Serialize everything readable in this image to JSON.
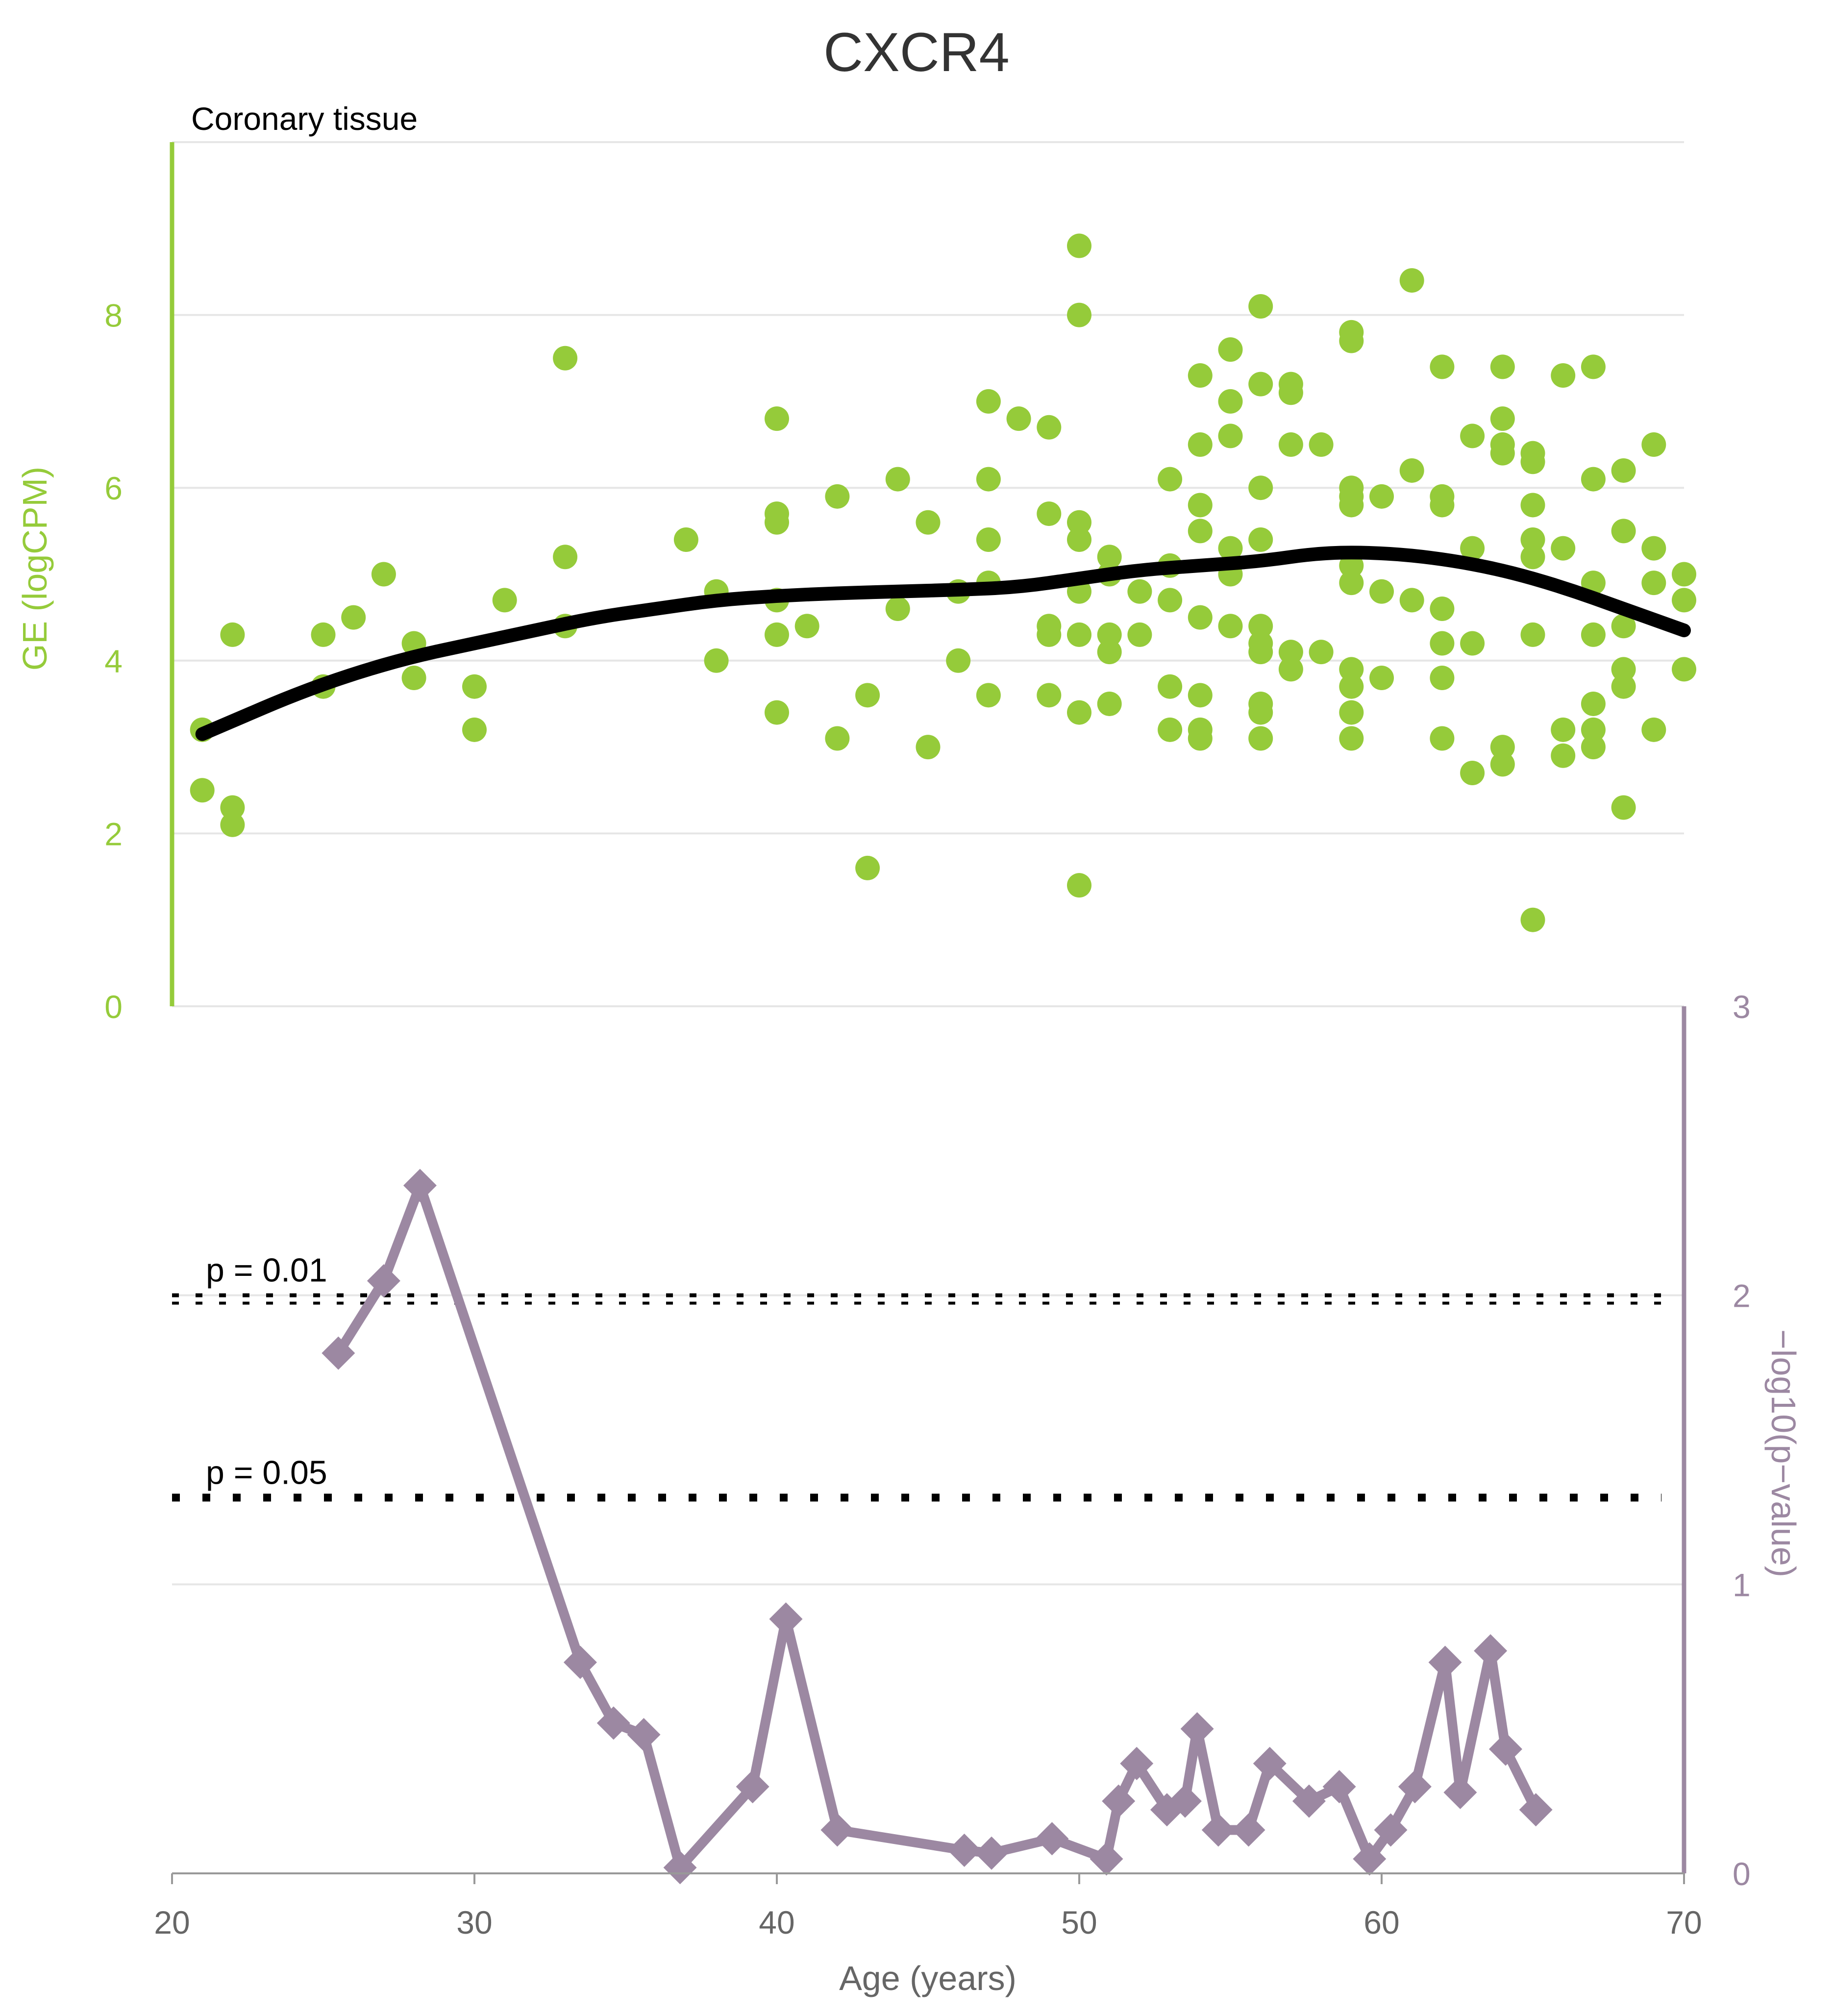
{
  "title": "CXCR4",
  "colors": {
    "scatter": "#95CB3A",
    "pvalue": "#9C88A2",
    "trend": "#000000",
    "grid": "#E6E6E6",
    "title": "#333333",
    "axis_text": "#666666"
  },
  "chart_data": [
    {
      "type": "scatter",
      "subtitle": "Coronary tissue",
      "ylabel": "GE (logCPM)",
      "xlim": [
        20,
        70
      ],
      "ylim": [
        0,
        10
      ],
      "yticks": [
        "0",
        "2",
        "4",
        "6",
        "8"
      ],
      "grid": true,
      "points": [
        [
          21,
          3.2
        ],
        [
          21,
          2.5
        ],
        [
          22,
          4.3
        ],
        [
          22,
          2.3
        ],
        [
          22,
          2.1
        ],
        [
          25,
          4.3
        ],
        [
          25,
          3.7
        ],
        [
          26,
          4.5
        ],
        [
          27,
          5.0
        ],
        [
          28,
          4.2
        ],
        [
          28,
          3.8
        ],
        [
          30,
          3.7
        ],
        [
          30,
          3.2
        ],
        [
          31,
          4.7
        ],
        [
          33,
          7.5
        ],
        [
          33,
          5.2
        ],
        [
          33,
          4.4
        ],
        [
          37,
          5.4
        ],
        [
          38,
          4.8
        ],
        [
          38,
          4.0
        ],
        [
          40,
          6.8
        ],
        [
          40,
          5.7
        ],
        [
          40,
          5.6
        ],
        [
          40,
          4.7
        ],
        [
          40,
          4.3
        ],
        [
          40,
          3.4
        ],
        [
          41,
          4.4
        ],
        [
          42,
          5.9
        ],
        [
          42,
          3.1
        ],
        [
          43,
          3.6
        ],
        [
          43,
          1.6
        ],
        [
          44,
          6.1
        ],
        [
          44,
          4.6
        ],
        [
          45,
          5.6
        ],
        [
          45,
          3.0
        ],
        [
          46,
          4.8
        ],
        [
          46,
          4.0
        ],
        [
          47,
          7.0
        ],
        [
          47,
          6.1
        ],
        [
          47,
          5.4
        ],
        [
          47,
          4.9
        ],
        [
          47,
          3.6
        ],
        [
          48,
          6.8
        ],
        [
          49,
          6.7
        ],
        [
          49,
          5.7
        ],
        [
          49,
          4.4
        ],
        [
          49,
          4.3
        ],
        [
          49,
          3.6
        ],
        [
          50,
          8.8
        ],
        [
          50,
          8.0
        ],
        [
          50,
          5.6
        ],
        [
          50,
          5.4
        ],
        [
          50,
          4.8
        ],
        [
          50,
          4.3
        ],
        [
          50,
          3.4
        ],
        [
          50,
          1.4
        ],
        [
          51,
          5.2
        ],
        [
          51,
          5.0
        ],
        [
          51,
          4.3
        ],
        [
          51,
          4.1
        ],
        [
          51,
          3.5
        ],
        [
          52,
          4.8
        ],
        [
          52,
          4.3
        ],
        [
          53,
          6.1
        ],
        [
          53,
          5.1
        ],
        [
          53,
          4.7
        ],
        [
          53,
          3.7
        ],
        [
          53,
          3.2
        ],
        [
          54,
          7.3
        ],
        [
          54,
          6.5
        ],
        [
          54,
          5.8
        ],
        [
          54,
          5.5
        ],
        [
          54,
          4.5
        ],
        [
          54,
          3.6
        ],
        [
          54,
          3.2
        ],
        [
          54,
          3.1
        ],
        [
          55,
          7.6
        ],
        [
          55,
          7.0
        ],
        [
          55,
          6.6
        ],
        [
          55,
          5.3
        ],
        [
          55,
          5.0
        ],
        [
          55,
          4.4
        ],
        [
          56,
          8.1
        ],
        [
          56,
          7.2
        ],
        [
          56,
          6.0
        ],
        [
          56,
          5.4
        ],
        [
          56,
          4.4
        ],
        [
          56,
          4.2
        ],
        [
          56,
          4.1
        ],
        [
          56,
          3.5
        ],
        [
          56,
          3.4
        ],
        [
          56,
          3.1
        ],
        [
          57,
          7.2
        ],
        [
          57,
          7.1
        ],
        [
          57,
          6.5
        ],
        [
          57,
          4.1
        ],
        [
          57,
          3.9
        ],
        [
          58,
          6.5
        ],
        [
          58,
          4.1
        ],
        [
          59,
          7.8
        ],
        [
          59,
          7.7
        ],
        [
          59,
          6.0
        ],
        [
          59,
          5.9
        ],
        [
          59,
          5.8
        ],
        [
          59,
          5.1
        ],
        [
          59,
          4.9
        ],
        [
          59,
          3.9
        ],
        [
          59,
          3.7
        ],
        [
          59,
          3.4
        ],
        [
          59,
          3.1
        ],
        [
          60,
          5.9
        ],
        [
          60,
          4.8
        ],
        [
          60,
          3.8
        ],
        [
          61,
          8.4
        ],
        [
          61,
          6.2
        ],
        [
          61,
          4.7
        ],
        [
          62,
          7.4
        ],
        [
          62,
          5.9
        ],
        [
          62,
          5.8
        ],
        [
          62,
          4.6
        ],
        [
          62,
          4.2
        ],
        [
          62,
          3.8
        ],
        [
          62,
          3.1
        ],
        [
          63,
          6.6
        ],
        [
          63,
          5.3
        ],
        [
          63,
          4.2
        ],
        [
          63,
          2.7
        ],
        [
          64,
          7.4
        ],
        [
          64,
          6.8
        ],
        [
          64,
          6.5
        ],
        [
          64,
          6.4
        ],
        [
          64,
          3.0
        ],
        [
          64,
          2.8
        ],
        [
          65,
          6.4
        ],
        [
          65,
          6.3
        ],
        [
          65,
          5.8
        ],
        [
          65,
          5.4
        ],
        [
          65,
          5.2
        ],
        [
          65,
          4.3
        ],
        [
          65,
          1.0
        ],
        [
          66,
          7.3
        ],
        [
          66,
          5.3
        ],
        [
          66,
          3.2
        ],
        [
          66,
          2.9
        ],
        [
          67,
          7.4
        ],
        [
          67,
          6.1
        ],
        [
          67,
          4.9
        ],
        [
          67,
          4.3
        ],
        [
          67,
          3.5
        ],
        [
          67,
          3.2
        ],
        [
          67,
          3.0
        ],
        [
          68,
          6.2
        ],
        [
          68,
          5.5
        ],
        [
          68,
          4.4
        ],
        [
          68,
          3.9
        ],
        [
          68,
          3.7
        ],
        [
          68,
          2.3
        ],
        [
          69,
          6.5
        ],
        [
          69,
          5.3
        ],
        [
          69,
          4.9
        ],
        [
          69,
          3.2
        ],
        [
          70,
          5.0
        ],
        [
          70,
          4.7
        ],
        [
          70,
          3.9
        ]
      ],
      "trend": [
        [
          21,
          3.15
        ],
        [
          22,
          3.3
        ],
        [
          24,
          3.6
        ],
        [
          26,
          3.85
        ],
        [
          28,
          4.05
        ],
        [
          30,
          4.2
        ],
        [
          32,
          4.35
        ],
        [
          34,
          4.5
        ],
        [
          36,
          4.6
        ],
        [
          38,
          4.7
        ],
        [
          40,
          4.75
        ],
        [
          42,
          4.78
        ],
        [
          44,
          4.8
        ],
        [
          46,
          4.82
        ],
        [
          48,
          4.85
        ],
        [
          50,
          4.95
        ],
        [
          52,
          5.05
        ],
        [
          54,
          5.1
        ],
        [
          56,
          5.15
        ],
        [
          58,
          5.25
        ],
        [
          60,
          5.25
        ],
        [
          62,
          5.18
        ],
        [
          64,
          5.05
        ],
        [
          66,
          4.85
        ],
        [
          68,
          4.6
        ],
        [
          70,
          4.35
        ]
      ]
    },
    {
      "type": "line",
      "ylabel": "−log10(p−value)",
      "xlabel": "Age (years)",
      "xlim": [
        20,
        70
      ],
      "ylim": [
        0,
        3
      ],
      "xticks": [
        "20",
        "30",
        "40",
        "50",
        "60",
        "70"
      ],
      "yticks": [
        "0",
        "1",
        "2",
        "3"
      ],
      "grid": true,
      "points": [
        [
          25.5,
          1.8
        ],
        [
          27,
          2.05
        ],
        [
          28.2,
          2.38
        ],
        [
          33.5,
          0.73
        ],
        [
          34.6,
          0.52
        ],
        [
          35.6,
          0.48
        ],
        [
          36.8,
          0.02
        ],
        [
          39.2,
          0.3
        ],
        [
          40.3,
          0.88
        ],
        [
          42,
          0.15
        ],
        [
          46.2,
          0.08
        ],
        [
          47.1,
          0.07
        ],
        [
          49.1,
          0.12
        ],
        [
          50.9,
          0.05
        ],
        [
          51.3,
          0.25
        ],
        [
          51.9,
          0.38
        ],
        [
          52.9,
          0.22
        ],
        [
          53.5,
          0.25
        ],
        [
          53.9,
          0.5
        ],
        [
          54.6,
          0.15
        ],
        [
          55.6,
          0.15
        ],
        [
          56.3,
          0.38
        ],
        [
          57.6,
          0.25
        ],
        [
          58.6,
          0.3
        ],
        [
          59.6,
          0.05
        ],
        [
          60.3,
          0.15
        ],
        [
          61.1,
          0.3
        ],
        [
          62.1,
          0.73
        ],
        [
          62.6,
          0.28
        ],
        [
          63.6,
          0.77
        ],
        [
          64.1,
          0.43
        ],
        [
          65.1,
          0.22
        ]
      ],
      "thresholds": [
        {
          "label": "p = 0.01",
          "value": 2.0
        },
        {
          "label": "p = 0.05",
          "value": 1.3
        }
      ]
    }
  ]
}
